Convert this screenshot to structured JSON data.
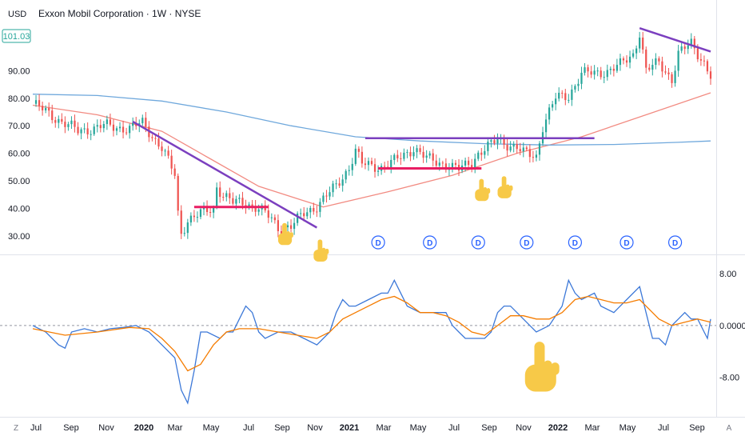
{
  "header": {
    "currency": "USD",
    "title": "Exxon Mobil Corporation · 1W · NYSE",
    "last_price": "101.03"
  },
  "colors": {
    "up": "#26a69a",
    "down": "#ef5350",
    "ma_fast": "#f28b82",
    "ma_slow": "#6fa8dc",
    "trend": "#7b3fbf",
    "support": "#e91e63",
    "macd": "#3c78d8",
    "signal": "#f57c00",
    "hand": "#f7c948",
    "dividend": "#2962ff",
    "price_badge": "#26a69a"
  },
  "icons": {
    "dividend_marker": "dividend-d-icon",
    "pointer": "pointing-hand-icon"
  },
  "dividend_label": "D",
  "footer": {
    "left": "Z",
    "right": "A"
  },
  "chart_data": [
    {
      "type": "candlestick",
      "title": "Exxon Mobil Corporation · 1W · NYSE",
      "ylim": [
        25,
        107
      ],
      "y_ticks": [
        "30.00",
        "40.00",
        "50.00",
        "60.00",
        "70.00",
        "80.00",
        "90.00"
      ],
      "y_tick_values": [
        30,
        40,
        50,
        60,
        70,
        80,
        90
      ],
      "x_tick_labels": [
        "Jul",
        "Sep",
        "Nov",
        "2020",
        "Mar",
        "May",
        "Jul",
        "Sep",
        "Nov",
        "2021",
        "Mar",
        "May",
        "Jul",
        "Sep",
        "Nov",
        "2022",
        "Mar",
        "May",
        "Jul",
        "Sep"
      ],
      "anchors": [
        [
          0,
          78
        ],
        [
          14,
          68
        ],
        [
          22,
          70
        ],
        [
          30,
          69
        ],
        [
          34,
          71
        ],
        [
          40,
          62
        ],
        [
          44,
          52
        ],
        [
          45,
          38
        ],
        [
          46,
          31
        ],
        [
          48,
          36
        ],
        [
          56,
          40
        ],
        [
          57,
          48
        ],
        [
          59,
          45
        ],
        [
          62,
          42
        ],
        [
          66,
          42
        ],
        [
          70,
          40
        ],
        [
          74,
          36
        ],
        [
          76,
          33
        ],
        [
          80,
          33.5
        ],
        [
          84,
          38
        ],
        [
          88,
          41
        ],
        [
          94,
          48
        ],
        [
          98,
          55
        ],
        [
          100,
          61
        ],
        [
          102,
          56
        ],
        [
          108,
          55
        ],
        [
          112,
          57
        ],
        [
          118,
          62
        ],
        [
          122,
          58
        ],
        [
          128,
          56
        ],
        [
          132,
          54
        ],
        [
          136,
          57
        ],
        [
          138,
          60
        ],
        [
          142,
          63
        ],
        [
          144,
          65
        ],
        [
          150,
          62
        ],
        [
          152,
          60
        ],
        [
          156,
          59
        ],
        [
          158,
          70
        ],
        [
          162,
          80
        ],
        [
          166,
          81
        ],
        [
          170,
          89
        ],
        [
          174,
          89
        ],
        [
          178,
          90
        ],
        [
          182,
          92
        ],
        [
          186,
          96
        ],
        [
          188,
          104
        ],
        [
          190,
          90
        ],
        [
          194,
          93
        ],
        [
          198,
          87
        ],
        [
          200,
          96
        ],
        [
          204,
          100
        ],
        [
          208,
          93
        ],
        [
          210,
          88
        ]
      ],
      "moving_averages": [
        {
          "name": "fast MA",
          "points": [
            [
              0,
              77.5
            ],
            [
              20,
              74
            ],
            [
              40,
              68
            ],
            [
              55,
              58
            ],
            [
              70,
              48
            ],
            [
              90,
              40.5
            ],
            [
              110,
              46
            ],
            [
              130,
              52
            ],
            [
              150,
              60
            ],
            [
              170,
              66
            ],
            [
              190,
              74
            ],
            [
              210,
              82
            ]
          ]
        },
        {
          "name": "slow MA",
          "points": [
            [
              0,
              81.5
            ],
            [
              20,
              81
            ],
            [
              40,
              79
            ],
            [
              60,
              75
            ],
            [
              80,
              70
            ],
            [
              100,
              66
            ],
            [
              120,
              64.5
            ],
            [
              140,
              63.5
            ],
            [
              160,
              63
            ],
            [
              180,
              63.2
            ],
            [
              200,
              64
            ],
            [
              210,
              64.5
            ]
          ]
        }
      ],
      "trendlines": [
        {
          "kind": "resistance",
          "from": [
            31,
            71.5
          ],
          "to": [
            88,
            33
          ]
        },
        {
          "kind": "resistance",
          "from": [
            188,
            105.5
          ],
          "to": [
            210,
            97
          ]
        },
        {
          "kind": "level",
          "from": [
            103,
            65.5
          ],
          "to": [
            174,
            65.5
          ]
        }
      ],
      "support_lines": [
        {
          "from": [
            50,
            40.5
          ],
          "to": [
            73,
            40.5
          ]
        },
        {
          "from": [
            107,
            54.5
          ],
          "to": [
            139,
            54.5
          ]
        }
      ],
      "dividend_markers_x": [
        107,
        123,
        138,
        153,
        168,
        184,
        199
      ],
      "hand_markers": [
        {
          "x": 78,
          "y": 30
        },
        {
          "x": 89,
          "y": 24
        },
        {
          "x": 139,
          "y": 46
        },
        {
          "x": 146,
          "y": 47
        }
      ]
    },
    {
      "type": "line",
      "title": "",
      "ylim": [
        -13,
        10
      ],
      "y_ticks": [
        "8.00",
        "0.0000",
        "-8.00"
      ],
      "y_tick_values": [
        8,
        0,
        -8
      ],
      "series": [
        {
          "name": "",
          "points": [
            [
              0,
              0
            ],
            [
              4,
              -1
            ],
            [
              8,
              -3
            ],
            [
              10,
              -3.5
            ],
            [
              12,
              -1
            ],
            [
              16,
              -0.5
            ],
            [
              20,
              -1
            ],
            [
              24,
              -0.5
            ],
            [
              28,
              -0.3
            ],
            [
              32,
              0
            ],
            [
              36,
              -1
            ],
            [
              40,
              -3
            ],
            [
              44,
              -5
            ],
            [
              46,
              -10
            ],
            [
              48,
              -12
            ],
            [
              50,
              -7
            ],
            [
              52,
              -1
            ],
            [
              54,
              -1
            ],
            [
              58,
              -2
            ],
            [
              60,
              -1
            ],
            [
              62,
              -1
            ],
            [
              64,
              1
            ],
            [
              66,
              3
            ],
            [
              68,
              2
            ],
            [
              70,
              -1
            ],
            [
              72,
              -2
            ],
            [
              76,
              -1
            ],
            [
              80,
              -1
            ],
            [
              84,
              -2
            ],
            [
              88,
              -3
            ],
            [
              92,
              -1
            ],
            [
              94,
              2
            ],
            [
              96,
              4
            ],
            [
              98,
              3
            ],
            [
              100,
              3
            ],
            [
              104,
              4
            ],
            [
              108,
              5
            ],
            [
              110,
              5
            ],
            [
              112,
              7
            ],
            [
              114,
              5
            ],
            [
              116,
              3
            ],
            [
              120,
              2
            ],
            [
              124,
              2
            ],
            [
              128,
              2
            ],
            [
              130,
              0
            ],
            [
              132,
              -1
            ],
            [
              134,
              -2
            ],
            [
              138,
              -2
            ],
            [
              140,
              -2
            ],
            [
              142,
              -1
            ],
            [
              144,
              2
            ],
            [
              146,
              3
            ],
            [
              148,
              3
            ],
            [
              150,
              2
            ],
            [
              154,
              0
            ],
            [
              156,
              -1
            ],
            [
              160,
              0
            ],
            [
              164,
              3
            ],
            [
              166,
              7
            ],
            [
              168,
              5
            ],
            [
              170,
              4
            ],
            [
              174,
              5
            ],
            [
              176,
              3
            ],
            [
              180,
              2
            ],
            [
              182,
              3
            ],
            [
              184,
              4
            ],
            [
              188,
              6
            ],
            [
              190,
              2
            ],
            [
              192,
              -2
            ],
            [
              194,
              -2
            ],
            [
              196,
              -3
            ],
            [
              198,
              0
            ],
            [
              200,
              1
            ],
            [
              202,
              2
            ],
            [
              204,
              1
            ],
            [
              206,
              1
            ],
            [
              208,
              -1
            ],
            [
              209,
              -2
            ],
            [
              210,
              1
            ]
          ]
        },
        {
          "name": "",
          "points": [
            [
              0,
              -0.5
            ],
            [
              10,
              -1.5
            ],
            [
              20,
              -1
            ],
            [
              30,
              -0.3
            ],
            [
              36,
              -0.5
            ],
            [
              40,
              -2
            ],
            [
              44,
              -4
            ],
            [
              48,
              -7
            ],
            [
              52,
              -6
            ],
            [
              56,
              -3
            ],
            [
              60,
              -1
            ],
            [
              64,
              -0.5
            ],
            [
              70,
              -0.5
            ],
            [
              76,
              -1
            ],
            [
              82,
              -1.5
            ],
            [
              88,
              -2
            ],
            [
              92,
              -1
            ],
            [
              96,
              1
            ],
            [
              100,
              2
            ],
            [
              104,
              3
            ],
            [
              108,
              4
            ],
            [
              112,
              4.5
            ],
            [
              116,
              3.5
            ],
            [
              120,
              2
            ],
            [
              124,
              2
            ],
            [
              128,
              1.5
            ],
            [
              132,
              0.5
            ],
            [
              136,
              -1
            ],
            [
              140,
              -1.5
            ],
            [
              144,
              0
            ],
            [
              148,
              1.5
            ],
            [
              152,
              1.5
            ],
            [
              156,
              1
            ],
            [
              160,
              1
            ],
            [
              164,
              2
            ],
            [
              168,
              4
            ],
            [
              172,
              4.5
            ],
            [
              176,
              4
            ],
            [
              180,
              3.5
            ],
            [
              184,
              3.5
            ],
            [
              188,
              4
            ],
            [
              190,
              3
            ],
            [
              194,
              1
            ],
            [
              198,
              0
            ],
            [
              202,
              0.5
            ],
            [
              206,
              1
            ],
            [
              210,
              0.5
            ]
          ]
        }
      ],
      "hand_marker": {
        "x": 157,
        "y": -7
      }
    }
  ]
}
